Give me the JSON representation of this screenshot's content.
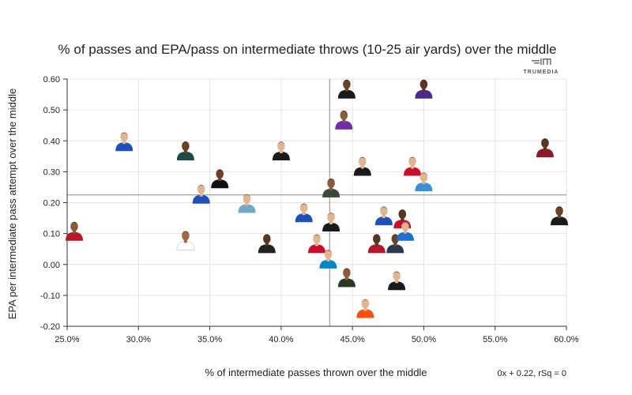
{
  "chart_data": {
    "type": "scatter",
    "title": "% of passes and EPA/pass on intermediate throws (10-25 air yards) over the middle",
    "xlabel": "% of intermediate passes thrown over the middle",
    "ylabel": "EPA per intermediate pass attempt over the middle",
    "x_ticks": [
      "25.0%",
      "30.0%",
      "35.0%",
      "40.0%",
      "45.0%",
      "50.0%",
      "55.0%",
      "60.0%"
    ],
    "y_ticks": [
      "0.60",
      "0.50",
      "0.40",
      "0.30",
      "0.20",
      "0.10",
      "0.00",
      "-0.10",
      "-0.20"
    ],
    "xlim": [
      25.0,
      60.0
    ],
    "ylim": [
      -0.2,
      0.6
    ],
    "grid": true,
    "reference_lines": {
      "x_mean": 43.4,
      "y_mean": 0.225
    },
    "fit_label": "0x + 0.22, rSq = 0",
    "brand": "TRUMEDIA",
    "points": [
      {
        "x": 25.5,
        "y": 0.11,
        "jersey": "#b3192b",
        "skin": "#8a5a3c"
      },
      {
        "x": 29.0,
        "y": 0.4,
        "jersey": "#1f4fb8",
        "skin": "#e0b592"
      },
      {
        "x": 33.3,
        "y": 0.37,
        "jersey": "#1f4a45",
        "skin": "#6b4228"
      },
      {
        "x": 33.3,
        "y": 0.08,
        "jersey": "#ffffff",
        "skin": "#a06a45"
      },
      {
        "x": 34.4,
        "y": 0.23,
        "jersey": "#1f4fb8",
        "skin": "#e0b592"
      },
      {
        "x": 35.7,
        "y": 0.28,
        "jersey": "#111111",
        "skin": "#6b4228"
      },
      {
        "x": 37.6,
        "y": 0.2,
        "jersey": "#6fa8c8",
        "skin": "#e0b592"
      },
      {
        "x": 39.0,
        "y": 0.07,
        "jersey": "#222222",
        "skin": "#5a3520"
      },
      {
        "x": 40.0,
        "y": 0.37,
        "jersey": "#1a1a1a",
        "skin": "#e0b592"
      },
      {
        "x": 41.6,
        "y": 0.17,
        "jersey": "#1f4fb8",
        "skin": "#e0b592"
      },
      {
        "x": 42.5,
        "y": 0.07,
        "jersey": "#c8102e",
        "skin": "#e0b592"
      },
      {
        "x": 43.3,
        "y": 0.02,
        "jersey": "#0085ca",
        "skin": "#e0b592"
      },
      {
        "x": 43.5,
        "y": 0.14,
        "jersey": "#1a1a1a",
        "skin": "#e0b592"
      },
      {
        "x": 43.5,
        "y": 0.25,
        "jersey": "#3a4a3a",
        "skin": "#8a5a3c"
      },
      {
        "x": 44.4,
        "y": 0.47,
        "jersey": "#6f2da8",
        "skin": "#8a5a3c"
      },
      {
        "x": 44.6,
        "y": 0.57,
        "jersey": "#1a1a1a",
        "skin": "#6b4228"
      },
      {
        "x": 44.6,
        "y": -0.04,
        "jersey": "#2a3a20",
        "skin": "#8a5a3c"
      },
      {
        "x": 45.7,
        "y": 0.32,
        "jersey": "#1a1a1a",
        "skin": "#e0b592"
      },
      {
        "x": 45.9,
        "y": -0.14,
        "jersey": "#fb4f14",
        "skin": "#e0b592"
      },
      {
        "x": 46.7,
        "y": 0.07,
        "jersey": "#b3192b",
        "skin": "#5a3520"
      },
      {
        "x": 47.2,
        "y": 0.16,
        "jersey": "#1f4fb8",
        "skin": "#e0b592"
      },
      {
        "x": 48.0,
        "y": 0.07,
        "jersey": "#2a3a4a",
        "skin": "#6b4228"
      },
      {
        "x": 48.1,
        "y": -0.05,
        "jersey": "#1a1a1a",
        "skin": "#e0b592"
      },
      {
        "x": 48.5,
        "y": 0.15,
        "jersey": "#c8102e",
        "skin": "#5a3520"
      },
      {
        "x": 48.7,
        "y": 0.11,
        "jersey": "#1f6fd1",
        "skin": "#e0b592"
      },
      {
        "x": 49.2,
        "y": 0.32,
        "jersey": "#c8102e",
        "skin": "#e0b592"
      },
      {
        "x": 50.0,
        "y": 0.57,
        "jersey": "#4b2a8a",
        "skin": "#5a3520"
      },
      {
        "x": 50.0,
        "y": 0.27,
        "jersey": "#3a8fd8",
        "skin": "#e0b592"
      },
      {
        "x": 58.5,
        "y": 0.38,
        "jersey": "#8b1a2b",
        "skin": "#5a3520"
      },
      {
        "x": 59.5,
        "y": 0.16,
        "jersey": "#1a1a1a",
        "skin": "#6b4228"
      }
    ]
  }
}
